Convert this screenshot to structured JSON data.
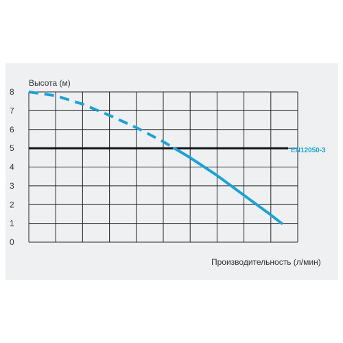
{
  "chart_data": {
    "type": "line",
    "title": "",
    "ylabel": "Высота (м)",
    "xlabel": "Производительность (л/мин)",
    "ylim": [
      0,
      8
    ],
    "y_ticks": [
      0,
      1,
      2,
      3,
      4,
      5,
      6,
      7,
      8
    ],
    "x_columns": 10,
    "grid": true,
    "series": [
      {
        "x": [
          0,
          1,
          2,
          3,
          4,
          5,
          6,
          7,
          8,
          9,
          9.4
        ],
        "values": [
          8.0,
          7.8,
          7.35,
          6.75,
          6.1,
          5.35,
          4.5,
          3.55,
          2.5,
          1.45,
          1.0
        ],
        "color": "#1aa3d9",
        "style": "dashed until y = 5, solid below"
      }
    ],
    "reference_line": {
      "y": 5,
      "label": "EN12050-3",
      "color": "#111111"
    }
  },
  "colors": {
    "panel": "#eef0f2",
    "grid": "#222222",
    "curve": "#1aa3d9"
  }
}
